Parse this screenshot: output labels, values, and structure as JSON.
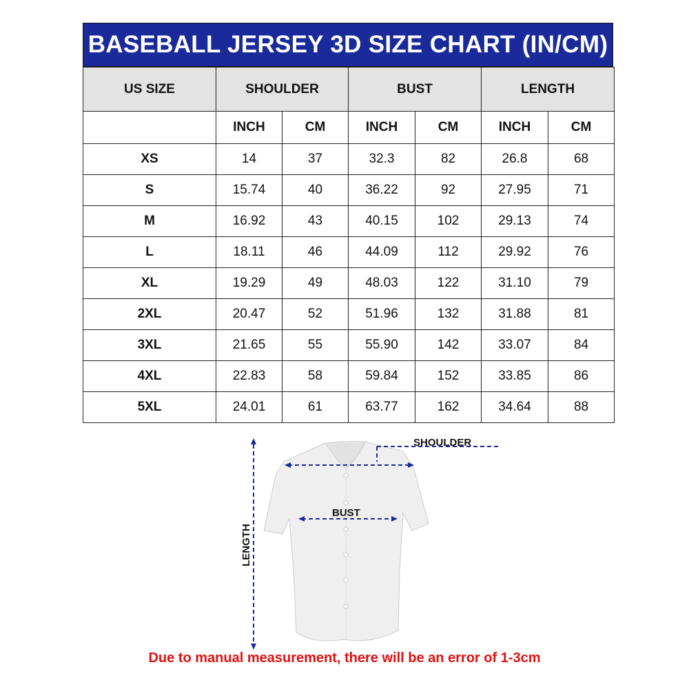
{
  "title": "BASEBALL JERSEY 3D SIZE CHART (IN/CM)",
  "headers": {
    "size": "US SIZE",
    "shoulder": "SHOULDER",
    "bust": "BUST",
    "length": "LENGTH"
  },
  "units": [
    "INCH",
    "CM",
    "INCH",
    "CM",
    "INCH",
    "CM"
  ],
  "rows": [
    [
      "XS",
      "14",
      "37",
      "32.3",
      "82",
      "26.8",
      "68"
    ],
    [
      "S",
      "15.74",
      "40",
      "36.22",
      "92",
      "27.95",
      "71"
    ],
    [
      "M",
      "16.92",
      "43",
      "40.15",
      "102",
      "29.13",
      "74"
    ],
    [
      "L",
      "18.11",
      "46",
      "44.09",
      "112",
      "29.92",
      "76"
    ],
    [
      "XL",
      "19.29",
      "49",
      "48.03",
      "122",
      "31.10",
      "79"
    ],
    [
      "2XL",
      "20.47",
      "52",
      "51.96",
      "132",
      "31.88",
      "81"
    ],
    [
      "3XL",
      "21.65",
      "55",
      "55.90",
      "142",
      "33.07",
      "84"
    ],
    [
      "4XL",
      "22.83",
      "58",
      "59.84",
      "152",
      "33.85",
      "86"
    ],
    [
      "5XL",
      "24.01",
      "61",
      "63.77",
      "162",
      "34.64",
      "88"
    ]
  ],
  "diagram": {
    "shoulder": "SHOULDER",
    "bust": "BUST",
    "length": "LENGTH",
    "arrow_color": "#1a2a9a"
  },
  "note": "Due to manual measurement, there will be an error of 1-3cm"
}
